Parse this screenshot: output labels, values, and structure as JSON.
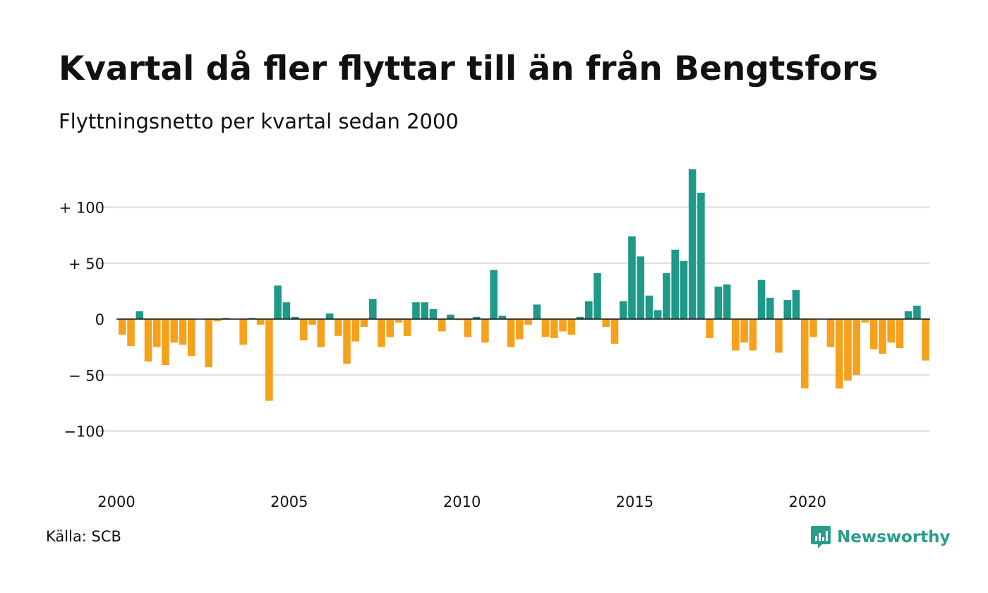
{
  "title": "Kvartal då fler flyttar till än från Bengtsfors",
  "subtitle": "Flyttningsnetto per kvartal sedan 2000",
  "source": "Källa: SCB",
  "brand": "Newsworthy",
  "colors": {
    "positive": "#1f9988",
    "negative": "#f5a11c",
    "grid": "#e2e2e2",
    "zero": "#111111",
    "brand": "#2a9d8a"
  },
  "chart_data": {
    "type": "bar",
    "ylim": [
      -140,
      140
    ],
    "y_ticks": [
      {
        "value": 100,
        "label": "+ 100"
      },
      {
        "value": 50,
        "label": "+  50"
      },
      {
        "value": 0,
        "label": "0"
      },
      {
        "value": -50,
        "label": "− 50"
      },
      {
        "value": -100,
        "label": "−100"
      }
    ],
    "x_ticks": [
      "2000",
      "2005",
      "2010",
      "2015",
      "2020"
    ],
    "first_quarter": "2000 K1",
    "values": [
      -14,
      -24,
      7,
      -38,
      -25,
      -41,
      -21,
      -23,
      -33,
      0,
      -43,
      -2,
      1,
      0,
      -23,
      1,
      -5,
      -73,
      30,
      15,
      2,
      -19,
      -5,
      -25,
      5,
      -15,
      -40,
      -20,
      -7,
      18,
      -25,
      -16,
      -3,
      -15,
      15,
      15,
      9,
      -11,
      4,
      -1,
      -16,
      2,
      -21,
      44,
      3,
      -25,
      -18,
      -5,
      13,
      -16,
      -17,
      -11,
      -14,
      2,
      16,
      41,
      -7,
      -22,
      16,
      74,
      56,
      21,
      8,
      41,
      62,
      52,
      134,
      113,
      -17,
      29,
      31,
      -28,
      -21,
      -28,
      35,
      19,
      -30,
      17,
      26,
      -62,
      -16,
      0,
      -25,
      -62,
      -55,
      -50,
      -3,
      -27,
      -31,
      -21,
      -26,
      7,
      12,
      -37
    ]
  }
}
